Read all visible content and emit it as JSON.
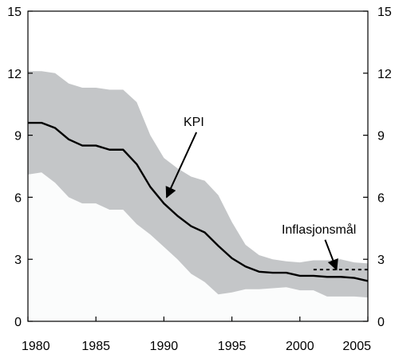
{
  "chart_data": {
    "type": "area",
    "title": "",
    "xlabel": "",
    "ylabel": "",
    "xlim": [
      1980,
      2005
    ],
    "ylim": [
      0,
      15
    ],
    "x_ticks": [
      1980,
      1985,
      1990,
      1995,
      2000,
      2005
    ],
    "y_ticks": [
      0,
      3,
      6,
      9,
      12,
      15
    ],
    "y_tick_labels": [
      "0",
      "3",
      "6",
      "9",
      "12",
      "15"
    ],
    "x_tick_labels": [
      "1980",
      "1985",
      "1990",
      "1995",
      "2000",
      "2005"
    ],
    "grid": false,
    "legend": "none",
    "colors": {
      "band": "#c4c6c8",
      "below_band": "#fbfcfc",
      "line": "#000000"
    },
    "band": {
      "x": [
        1980,
        1981,
        1982,
        1983,
        1984,
        1985,
        1986,
        1987,
        1988,
        1989,
        1990,
        1991,
        1992,
        1993,
        1994,
        1995,
        1996,
        1997,
        1998,
        1999,
        2000,
        2001,
        2002,
        2003,
        2004,
        2005
      ],
      "upper": [
        12.1,
        12.1,
        12.0,
        11.5,
        11.3,
        11.3,
        11.2,
        11.2,
        10.6,
        9.0,
        7.9,
        7.4,
        7.0,
        6.8,
        6.1,
        4.8,
        3.7,
        3.2,
        3.0,
        2.9,
        2.85,
        2.95,
        2.95,
        3.0,
        2.85,
        2.8
      ],
      "lower": [
        7.1,
        7.2,
        6.7,
        6.0,
        5.7,
        5.7,
        5.4,
        5.4,
        4.7,
        4.2,
        3.6,
        3.0,
        2.3,
        1.9,
        1.3,
        1.4,
        1.55,
        1.55,
        1.6,
        1.65,
        1.5,
        1.5,
        1.2,
        1.2,
        1.2,
        1.15
      ]
    },
    "series": [
      {
        "name": "KPI",
        "x": [
          1980,
          1981,
          1982,
          1983,
          1984,
          1985,
          1986,
          1987,
          1988,
          1989,
          1990,
          1991,
          1992,
          1993,
          1994,
          1995,
          1996,
          1997,
          1998,
          1999,
          2000,
          2001,
          2002,
          2003,
          2004,
          2005
        ],
        "values": [
          9.6,
          9.6,
          9.35,
          8.8,
          8.5,
          8.5,
          8.3,
          8.3,
          7.6,
          6.5,
          5.7,
          5.1,
          4.6,
          4.3,
          3.65,
          3.05,
          2.65,
          2.4,
          2.35,
          2.35,
          2.2,
          2.2,
          2.15,
          2.15,
          2.1,
          1.95
        ]
      },
      {
        "name": "Inflasjonsmål",
        "style": "dashed",
        "x": [
          2001,
          2005
        ],
        "values": [
          2.5,
          2.5
        ]
      }
    ],
    "annotations": [
      {
        "text": "KPI",
        "target": [
          1990.2,
          6.0
        ],
        "label_at": [
          1992.2,
          9.45
        ]
      },
      {
        "text": "Inflasjonsmål",
        "target": [
          2002.7,
          2.5
        ],
        "label_at": [
          2001.4,
          4.25
        ]
      }
    ]
  }
}
